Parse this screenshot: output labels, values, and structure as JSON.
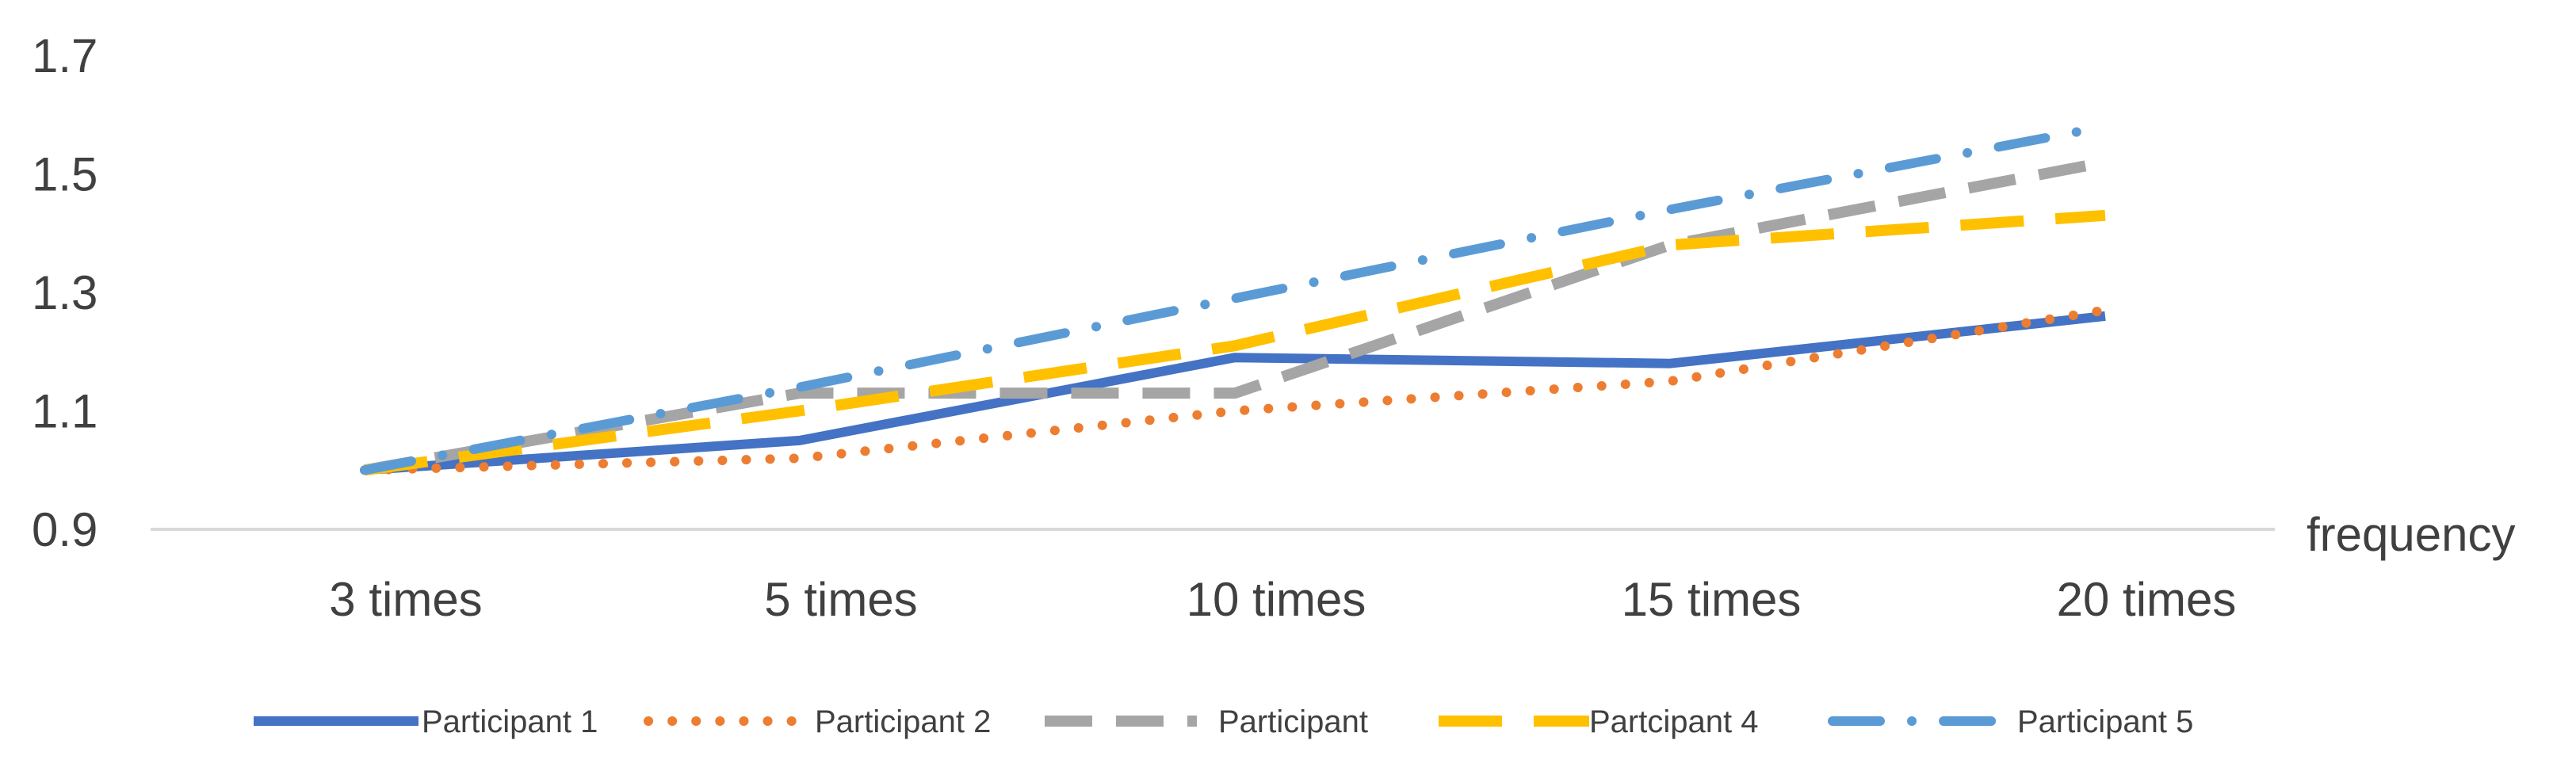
{
  "chart_data": {
    "type": "line",
    "title": "",
    "xlabel": "frequency",
    "ylabel": "",
    "categories": [
      "3 times",
      "5 times",
      "10 times",
      "15 times",
      "20 times"
    ],
    "ylim": [
      0.9,
      1.7
    ],
    "yticks": [
      "0.9",
      "1.1",
      "1.3",
      "1.5",
      "1.7"
    ],
    "ytick_values": [
      0.9,
      1.1,
      1.3,
      1.5,
      1.7
    ],
    "grid": false,
    "legend_position": "bottom",
    "series": [
      {
        "name": "Participant 1",
        "values": [
          1.0,
          1.05,
          1.19,
          1.18,
          1.26
        ],
        "color": "#4472C4",
        "style": "solid"
      },
      {
        "name": "Participant 2",
        "values": [
          1.0,
          1.02,
          1.1,
          1.15,
          1.27
        ],
        "color": "#ED7D31",
        "style": "dotted"
      },
      {
        "name": "Participant",
        "values": [
          1.0,
          1.13,
          1.13,
          1.38,
          1.52
        ],
        "color": "#A5A5A5",
        "style": "dashed"
      },
      {
        "name": "Partcipant 4",
        "values": [
          1.0,
          1.1,
          1.21,
          1.38,
          1.43
        ],
        "color": "#FFC000",
        "style": "long-dash"
      },
      {
        "name": "Participant 5",
        "values": [
          1.0,
          1.14,
          1.29,
          1.44,
          1.58
        ],
        "color": "#5B9BD5",
        "style": "dash-dot"
      }
    ]
  }
}
